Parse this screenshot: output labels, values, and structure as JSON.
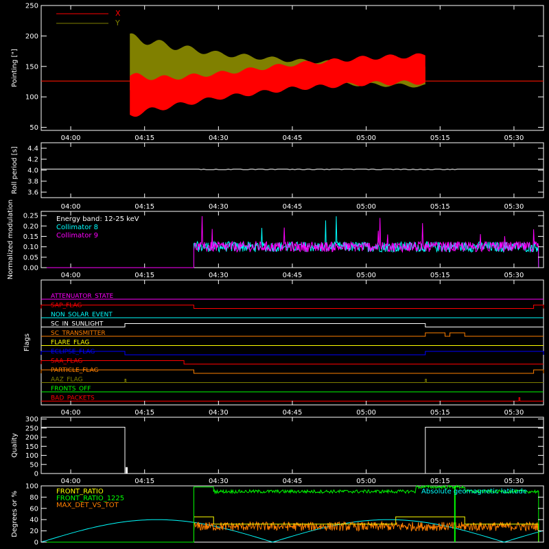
{
  "chart_data": [
    {
      "type": "line",
      "ylabel": "Pointing [\"]",
      "ylim": [
        45,
        250
      ],
      "yticks": [
        50,
        100,
        150,
        200,
        250
      ],
      "x_range": [
        "03:54",
        "05:36"
      ],
      "x_ticks": [
        "04:00",
        "04:15",
        "04:30",
        "04:45",
        "05:00",
        "05:15",
        "05:30"
      ],
      "legend": "top-left",
      "series": [
        {
          "name": "X",
          "color": "#ff0000",
          "baseline": 126,
          "oscillation_start": "04:12",
          "oscillation_end": "05:12",
          "envelope": [
            {
              "t": "04:12",
              "lo": 65,
              "hi": 140
            },
            {
              "t": "04:20",
              "lo": 80,
              "hi": 135
            },
            {
              "t": "04:30",
              "lo": 95,
              "hi": 142
            },
            {
              "t": "04:45",
              "lo": 110,
              "hi": 157
            },
            {
              "t": "05:00",
              "lo": 118,
              "hi": 168
            },
            {
              "t": "05:12",
              "lo": 120,
              "hi": 172
            }
          ]
        },
        {
          "name": "Y",
          "color": "#808000",
          "baseline": 126,
          "oscillation_start": "04:12",
          "oscillation_end": "05:12",
          "envelope": [
            {
              "t": "04:12",
              "lo": 110,
              "hi": 205
            },
            {
              "t": "04:20",
              "lo": 112,
              "hi": 190
            },
            {
              "t": "04:30",
              "lo": 120,
              "hi": 175
            },
            {
              "t": "04:45",
              "lo": 120,
              "hi": 163
            },
            {
              "t": "05:00",
              "lo": 117,
              "hi": 158
            },
            {
              "t": "05:12",
              "lo": 115,
              "hi": 155
            }
          ]
        }
      ]
    },
    {
      "type": "line",
      "ylabel": "Roll period [s]",
      "ylim": [
        3.5,
        4.5
      ],
      "yticks": [
        3.6,
        3.8,
        4.0,
        4.2,
        4.4
      ],
      "x_ticks": [
        "04:00",
        "04:15",
        "04:30",
        "04:45",
        "05:00",
        "05:15",
        "05:30"
      ],
      "series": [
        {
          "name": "",
          "color": "#ffffff",
          "value": 4.02
        }
      ]
    },
    {
      "type": "line",
      "ylabel": "Normalized modulation",
      "ylim": [
        0,
        0.27
      ],
      "yticks": [
        "0.00",
        "0.05",
        "0.10",
        "0.15",
        "0.20",
        "0.25"
      ],
      "x_ticks": [
        "04:00",
        "04:15",
        "04:30",
        "04:45",
        "05:00",
        "05:15",
        "05:30"
      ],
      "annotation": "Energy band: 12-25 keV",
      "active_start": "04:25",
      "active_end": "05:35",
      "series": [
        {
          "name": "Collimator 8",
          "color": "#00ffff",
          "mean": 0.1
        },
        {
          "name": "Collimator 9",
          "color": "#ff00ff",
          "mean": 0.1
        }
      ]
    },
    {
      "type": "line",
      "ylabel": "Flags",
      "x_ticks": [
        "04:00",
        "04:15",
        "04:30",
        "04:45",
        "05:00",
        "05:15",
        "05:30"
      ],
      "flags": [
        {
          "name": "ATTENUATOR_STATE",
          "color": "#ff00ff",
          "segments": []
        },
        {
          "name": "SAP_FLAG",
          "color": "#ff0000",
          "segments": [
            [
              "03:54",
              "04:25"
            ],
            [
              "05:34",
              "05:36"
            ]
          ]
        },
        {
          "name": "NON_SOLAR_EVENT",
          "color": "#00ffff",
          "segments": []
        },
        {
          "name": "SC_IN_SUNLIGHT",
          "color": "#ffffff",
          "segments": [
            [
              "04:11",
              "05:12"
            ]
          ]
        },
        {
          "name": "SC_TRANSMITTER",
          "color": "#ff7f00",
          "segments": [
            [
              "05:12",
              "05:16"
            ],
            [
              "05:17",
              "05:20"
            ]
          ]
        },
        {
          "name": "FLARE_FLAG",
          "color": "#ffff00",
          "segments": []
        },
        {
          "name": "ECLIPSE_FLAG",
          "color": "#0000ff",
          "segments": [
            [
              "03:54",
              "04:11"
            ],
            [
              "05:12",
              "05:36"
            ]
          ]
        },
        {
          "name": "SAA_FLAG",
          "color": "#ff0000",
          "segments": [
            [
              "03:54",
              "04:23"
            ]
          ]
        },
        {
          "name": "PARTICLE_FLAG",
          "color": "#ff7f00",
          "segments": [
            [
              "03:54",
              "04:25"
            ],
            [
              "05:34",
              "05:36"
            ]
          ]
        },
        {
          "name": "AAZ_FLAG",
          "color": "#808000",
          "segments": [
            [
              "04:11",
              "04:11"
            ],
            [
              "05:12",
              "05:12"
            ]
          ]
        },
        {
          "name": "FRONTS_OFF",
          "color": "#00ff00",
          "segments": []
        },
        {
          "name": "BAD_PACKETS",
          "color": "#ff0000",
          "segments": [
            [
              "05:31",
              "05:31"
            ]
          ]
        }
      ]
    },
    {
      "type": "line",
      "ylabel": "Quality",
      "ylim": [
        0,
        310
      ],
      "yticks": [
        0,
        50,
        100,
        150,
        200,
        250,
        300
      ],
      "x_ticks": [
        "04:00",
        "04:15",
        "04:30",
        "04:45",
        "05:00",
        "05:15",
        "05:30"
      ],
      "series": [
        {
          "name": "",
          "color": "#ffffff",
          "points": [
            [
              "03:54",
              255
            ],
            [
              "04:11",
              255
            ],
            [
              "04:11",
              0
            ],
            [
              "05:12",
              0
            ],
            [
              "05:12",
              255
            ],
            [
              "05:36",
              255
            ]
          ]
        }
      ]
    },
    {
      "type": "line",
      "ylabel": "Degrees or %",
      "ylim": [
        0,
        100
      ],
      "yticks": [
        0,
        20,
        40,
        60,
        80,
        100
      ],
      "annotation": "Absolute geomagnetic latitude",
      "series": [
        {
          "name": "FRONT_RATIO",
          "color": "#ffff00"
        },
        {
          "name": "FRONT_RATIO_1225",
          "color": "#00ff00"
        },
        {
          "name": "MAX_DET_VS_TOT",
          "color": "#ff7f00"
        }
      ]
    }
  ]
}
